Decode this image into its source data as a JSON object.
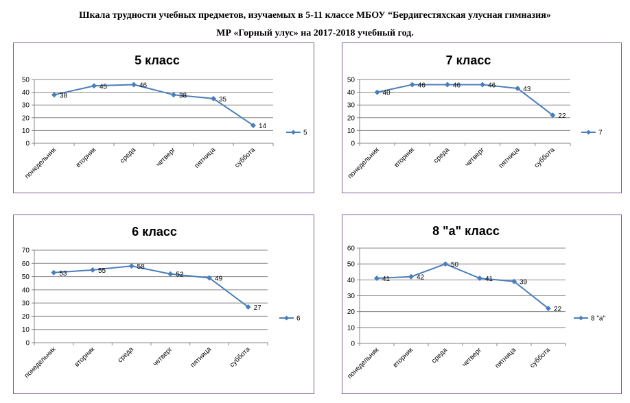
{
  "header": {
    "line1": "Шкала трудности учебных предметов, изучаемых в 5-11 классе МБОУ “Бердигестяхская улусная гимназия»",
    "line2": "МР «Горный улус» на 2017-2018 учебный год."
  },
  "colors": {
    "series": "#4a7ebb",
    "grid": "#868686",
    "border": "#7a5a90"
  },
  "chart_data": [
    {
      "type": "line",
      "title": "5 класс",
      "categories": [
        "понедельник",
        "вторник",
        "среда",
        "четверг",
        "пятница",
        "суббота"
      ],
      "series": [
        {
          "name": "5",
          "values": [
            38,
            45,
            46,
            38,
            35,
            14
          ]
        }
      ],
      "ylim": [
        0,
        50
      ],
      "ystep": 10,
      "grid": true,
      "legend": "right"
    },
    {
      "type": "line",
      "title": "7 класс",
      "categories": [
        "понедельник",
        "вторник",
        "среда",
        "четверг",
        "пятница",
        "суббота"
      ],
      "series": [
        {
          "name": "7",
          "values": [
            40,
            46,
            46,
            46,
            43,
            22
          ]
        }
      ],
      "ylim": [
        0,
        50
      ],
      "ystep": 10,
      "grid": true,
      "legend": "right"
    },
    {
      "type": "line",
      "title": "6 класс",
      "categories": [
        "понедельник",
        "вторник",
        "среда",
        "четверг",
        "пятница",
        "суббота"
      ],
      "series": [
        {
          "name": "6",
          "values": [
            53,
            55,
            58,
            52,
            49,
            27
          ]
        }
      ],
      "ylim": [
        0,
        70
      ],
      "ystep": 10,
      "grid": true,
      "legend": "right"
    },
    {
      "type": "line",
      "title": "8 \"а\" класс",
      "categories": [
        "понедельник",
        "вторник",
        "среда",
        "четверг",
        "пятница",
        "суббота"
      ],
      "series": [
        {
          "name": "8 \"а\"",
          "values": [
            41,
            42,
            50,
            41,
            39,
            22
          ]
        }
      ],
      "ylim": [
        0,
        60
      ],
      "ystep": 10,
      "grid": true,
      "legend": "right"
    }
  ]
}
